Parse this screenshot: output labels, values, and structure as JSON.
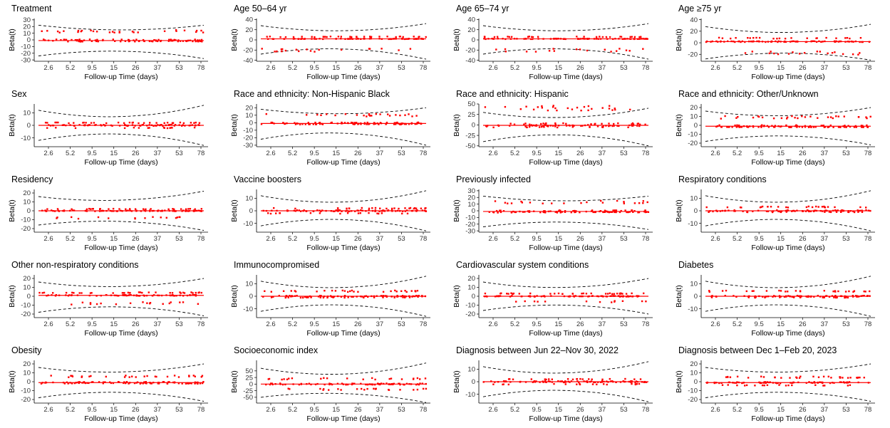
{
  "chart_data": [
    {
      "type": "scatter",
      "title": "Treatment",
      "ylabel": "Beta(t)",
      "xlabel": "Follow-up Time (days)",
      "xticks": [
        "2.6",
        "5.2",
        "9.5",
        "15",
        "26",
        "37",
        "53",
        "78"
      ],
      "yticks": [
        30,
        20,
        10,
        0,
        -10,
        -20,
        -30
      ],
      "ylim": [
        -32,
        32
      ],
      "center": -1,
      "upper_band": [
        22,
        15,
        22
      ],
      "lower_band": [
        -24,
        -17,
        -28
      ],
      "point_levels": [
        13,
        -1,
        -2
      ]
    },
    {
      "type": "scatter",
      "title": "Age 50–64 yr",
      "ylabel": "Beta(t)",
      "xlabel": "Follow-up Time (days)",
      "xticks": [
        "2.6",
        "5.2",
        "9.5",
        "15",
        "26",
        "37",
        "53",
        "78"
      ],
      "yticks": [
        40,
        20,
        0,
        -20,
        -40
      ],
      "ylim": [
        -42,
        42
      ],
      "center": 2,
      "upper_band": [
        28,
        18,
        32
      ],
      "lower_band": [
        -28,
        -18,
        -38
      ],
      "point_levels": [
        6,
        2,
        -20
      ]
    },
    {
      "type": "scatter",
      "title": "Age 65–74 yr",
      "ylabel": "Beta(t)",
      "xlabel": "Follow-up Time (days)",
      "xticks": [
        "2.6",
        "5.2",
        "9.5",
        "15",
        "26",
        "37",
        "53",
        "78"
      ],
      "yticks": [
        40,
        20,
        0,
        -20,
        -40
      ],
      "ylim": [
        -42,
        42
      ],
      "center": 2,
      "upper_band": [
        28,
        18,
        32
      ],
      "lower_band": [
        -28,
        -18,
        -38
      ],
      "point_levels": [
        6,
        2,
        -20
      ]
    },
    {
      "type": "scatter",
      "title": "Age ≥75 yr",
      "ylabel": "Beta(t)",
      "xlabel": "Follow-up Time (days)",
      "xticks": [
        "2.6",
        "5.2",
        "9.5",
        "15",
        "26",
        "37",
        "53",
        "78"
      ],
      "yticks": [
        40,
        20,
        0,
        -20
      ],
      "ylim": [
        -32,
        42
      ],
      "center": 2,
      "upper_band": [
        28,
        18,
        32
      ],
      "lower_band": [
        -28,
        -18,
        -30
      ],
      "point_levels": [
        8,
        2,
        -18
      ]
    },
    {
      "type": "scatter",
      "title": "Sex",
      "ylabel": "Beta(t)",
      "xlabel": "Follow-up Time (days)",
      "xticks": [
        "2.6",
        "5.2",
        "9.5",
        "15",
        "26",
        "37",
        "53",
        "78"
      ],
      "yticks": [
        10,
        0,
        -10
      ],
      "ylim": [
        -17,
        17
      ],
      "center": 0,
      "upper_band": [
        12,
        7,
        16
      ],
      "lower_band": [
        -12,
        -7,
        -16
      ],
      "point_levels": [
        2,
        0,
        -2
      ]
    },
    {
      "type": "scatter",
      "title": "Race and ethnicity: Non-Hispanic Black",
      "ylabel": "Beta(t)",
      "xlabel": "Follow-up Time (days)",
      "xticks": [
        "2.6",
        "5.2",
        "9.5",
        "15",
        "26",
        "37",
        "53",
        "78"
      ],
      "yticks": [
        20,
        10,
        0,
        -10,
        -20,
        -30
      ],
      "ylim": [
        -32,
        25
      ],
      "center": -1,
      "upper_band": [
        18,
        12,
        20
      ],
      "lower_band": [
        -22,
        -14,
        -30
      ],
      "point_levels": [
        10,
        -1,
        -2
      ]
    },
    {
      "type": "scatter",
      "title": "Race and ethnicity: Hispanic",
      "ylabel": "Beta(t)",
      "xlabel": "Follow-up Time (days)",
      "xticks": [
        "2.6",
        "5.2",
        "9.5",
        "15",
        "26",
        "37",
        "53",
        "78"
      ],
      "yticks": [
        50,
        25,
        0,
        -25,
        -50
      ],
      "ylim": [
        -52,
        50
      ],
      "center": -1,
      "upper_band": [
        30,
        18,
        40
      ],
      "lower_band": [
        -40,
        -24,
        -50
      ],
      "point_levels": [
        40,
        -1,
        -2
      ]
    },
    {
      "type": "scatter",
      "title": "Race and ethnicity: Other/Unknown",
      "ylabel": "Beta(t)",
      "xlabel": "Follow-up Time (days)",
      "xticks": [
        "2.6",
        "5.2",
        "9.5",
        "15",
        "26",
        "37",
        "53",
        "78"
      ],
      "yticks": [
        20,
        10,
        0,
        -10,
        -20
      ],
      "ylim": [
        -24,
        24
      ],
      "center": -1,
      "upper_band": [
        16,
        11,
        20
      ],
      "lower_band": [
        -18,
        -12,
        -22
      ],
      "point_levels": [
        9,
        -1,
        -2
      ]
    },
    {
      "type": "scatter",
      "title": "Residency",
      "ylabel": "Beta(t)",
      "xlabel": "Follow-up Time (days)",
      "xticks": [
        "2.6",
        "5.2",
        "9.5",
        "15",
        "26",
        "37",
        "53",
        "78"
      ],
      "yticks": [
        20,
        10,
        0,
        -10,
        -20
      ],
      "ylim": [
        -24,
        24
      ],
      "center": 0,
      "upper_band": [
        16,
        12,
        22
      ],
      "lower_band": [
        -16,
        -12,
        -22
      ],
      "point_levels": [
        2,
        0,
        -8
      ]
    },
    {
      "type": "scatter",
      "title": "Vaccine boosters",
      "ylabel": "Beta(t)",
      "xlabel": "Follow-up Time (days)",
      "xticks": [
        "2.6",
        "5.2",
        "9.5",
        "15",
        "26",
        "37",
        "53",
        "78"
      ],
      "yticks": [
        10,
        0,
        -10
      ],
      "ylim": [
        -17,
        17
      ],
      "center": 0,
      "upper_band": [
        12,
        7,
        16
      ],
      "lower_band": [
        -12,
        -7,
        -16
      ],
      "point_levels": [
        2,
        0,
        -2
      ]
    },
    {
      "type": "scatter",
      "title": "Previously infected",
      "ylabel": "Beta(t)",
      "xlabel": "Follow-up Time (days)",
      "xticks": [
        "2.6",
        "5.2",
        "9.5",
        "15",
        "26",
        "37",
        "53",
        "78"
      ],
      "yticks": [
        30,
        20,
        10,
        0,
        -10,
        -20,
        -30
      ],
      "ylim": [
        -32,
        32
      ],
      "center": -1,
      "upper_band": [
        22,
        15,
        22
      ],
      "lower_band": [
        -24,
        -17,
        -28
      ],
      "point_levels": [
        13,
        -1,
        -2
      ]
    },
    {
      "type": "scatter",
      "title": "Respiratory conditions",
      "ylabel": "Beta(t)",
      "xlabel": "Follow-up Time (days)",
      "xticks": [
        "2.6",
        "5.2",
        "9.5",
        "15",
        "26",
        "37",
        "53",
        "78"
      ],
      "yticks": [
        10,
        0,
        -10
      ],
      "ylim": [
        -17,
        17
      ],
      "center": 0,
      "upper_band": [
        12,
        7,
        16
      ],
      "lower_band": [
        -12,
        -7,
        -16
      ],
      "point_levels": [
        3,
        0,
        -1
      ]
    },
    {
      "type": "scatter",
      "title": "Other non-respiratory conditions",
      "ylabel": "Beta(t)",
      "xlabel": "Follow-up Time (days)",
      "xticks": [
        "2.6",
        "5.2",
        "9.5",
        "15",
        "26",
        "37",
        "53",
        "78"
      ],
      "yticks": [
        20,
        10,
        0,
        -10,
        -20
      ],
      "ylim": [
        -24,
        24
      ],
      "center": 1,
      "upper_band": [
        16,
        11,
        20
      ],
      "lower_band": [
        -18,
        -12,
        -22
      ],
      "point_levels": [
        4,
        1,
        -8
      ]
    },
    {
      "type": "scatter",
      "title": "Immunocompromised",
      "ylabel": "Beta(t)",
      "xlabel": "Follow-up Time (days)",
      "xticks": [
        "2.6",
        "5.2",
        "9.5",
        "15",
        "26",
        "37",
        "53",
        "78"
      ],
      "yticks": [
        10,
        0,
        -10
      ],
      "ylim": [
        -17,
        17
      ],
      "center": 0,
      "upper_band": [
        12,
        7,
        16
      ],
      "lower_band": [
        -12,
        -7,
        -16
      ],
      "point_levels": [
        4,
        0,
        -1
      ]
    },
    {
      "type": "scatter",
      "title": "Cardiovascular system conditions",
      "ylabel": "Beta(t)",
      "xlabel": "Follow-up Time (days)",
      "xticks": [
        "2.6",
        "5.2",
        "9.5",
        "15",
        "26",
        "37",
        "53",
        "78"
      ],
      "yticks": [
        20,
        10,
        0,
        -10,
        -20
      ],
      "ylim": [
        -24,
        24
      ],
      "center": 0,
      "upper_band": [
        16,
        10,
        20
      ],
      "lower_band": [
        -16,
        -10,
        -20
      ],
      "point_levels": [
        3,
        0,
        -6
      ]
    },
    {
      "type": "scatter",
      "title": "Diabetes",
      "ylabel": "Beta(t)",
      "xlabel": "Follow-up Time (days)",
      "xticks": [
        "2.6",
        "5.2",
        "9.5",
        "15",
        "26",
        "37",
        "53",
        "78"
      ],
      "yticks": [
        10,
        0,
        -10
      ],
      "ylim": [
        -17,
        17
      ],
      "center": 0,
      "upper_band": [
        12,
        7,
        16
      ],
      "lower_band": [
        -12,
        -7,
        -16
      ],
      "point_levels": [
        4,
        0,
        -1
      ]
    },
    {
      "type": "scatter",
      "title": "Obesity",
      "ylabel": "Beta(t)",
      "xlabel": "Follow-up Time (days)",
      "xticks": [
        "2.6",
        "5.2",
        "9.5",
        "15",
        "26",
        "37",
        "53",
        "78"
      ],
      "yticks": [
        20,
        10,
        0,
        -10,
        -20
      ],
      "ylim": [
        -24,
        24
      ],
      "center": -1,
      "upper_band": [
        16,
        11,
        20
      ],
      "lower_band": [
        -18,
        -12,
        -22
      ],
      "point_levels": [
        6,
        -1,
        -2
      ]
    },
    {
      "type": "scatter",
      "title": "Socioeconomic index",
      "ylabel": "Beta(t)",
      "xlabel": "Follow-up Time (days)",
      "xticks": [
        "2.6",
        "5.2",
        "9.5",
        "15",
        "26",
        "37",
        "53",
        "78"
      ],
      "yticks": [
        50,
        25,
        0,
        -25,
        -50
      ],
      "ylim": [
        -72,
        90
      ],
      "center": 0,
      "upper_band": [
        60,
        38,
        80
      ],
      "lower_band": [
        -50,
        -36,
        -70
      ],
      "point_levels": [
        20,
        0,
        -20
      ]
    },
    {
      "type": "scatter",
      "title": "Diagnosis between Jun 22–Nov 30, 2022",
      "ylabel": "Beta(t)",
      "xlabel": "Follow-up Time (days)",
      "xticks": [
        "2.6",
        "5.2",
        "9.5",
        "15",
        "26",
        "37",
        "53",
        "78"
      ],
      "yticks": [
        10,
        0,
        -10
      ],
      "ylim": [
        -17,
        17
      ],
      "center": 0,
      "upper_band": [
        12,
        7,
        16
      ],
      "lower_band": [
        -12,
        -7,
        -16
      ],
      "point_levels": [
        2,
        0,
        -2
      ]
    },
    {
      "type": "scatter",
      "title": "Diagnosis between Dec 1–Feb 20, 2023",
      "ylabel": "Beta(t)",
      "xlabel": "Follow-up Time (days)",
      "xticks": [
        "2.6",
        "5.2",
        "9.5",
        "15",
        "26",
        "37",
        "53",
        "78"
      ],
      "yticks": [
        20,
        10,
        0,
        -10,
        -20
      ],
      "ylim": [
        -24,
        24
      ],
      "center": -1,
      "upper_band": [
        16,
        11,
        20
      ],
      "lower_band": [
        -18,
        -12,
        -22
      ],
      "point_levels": [
        5,
        -1,
        -4
      ]
    }
  ],
  "colors": {
    "points": "#ff0000",
    "center_line": "#ff0000",
    "band": "#000000",
    "axis": "#000000",
    "text": "#000000"
  }
}
